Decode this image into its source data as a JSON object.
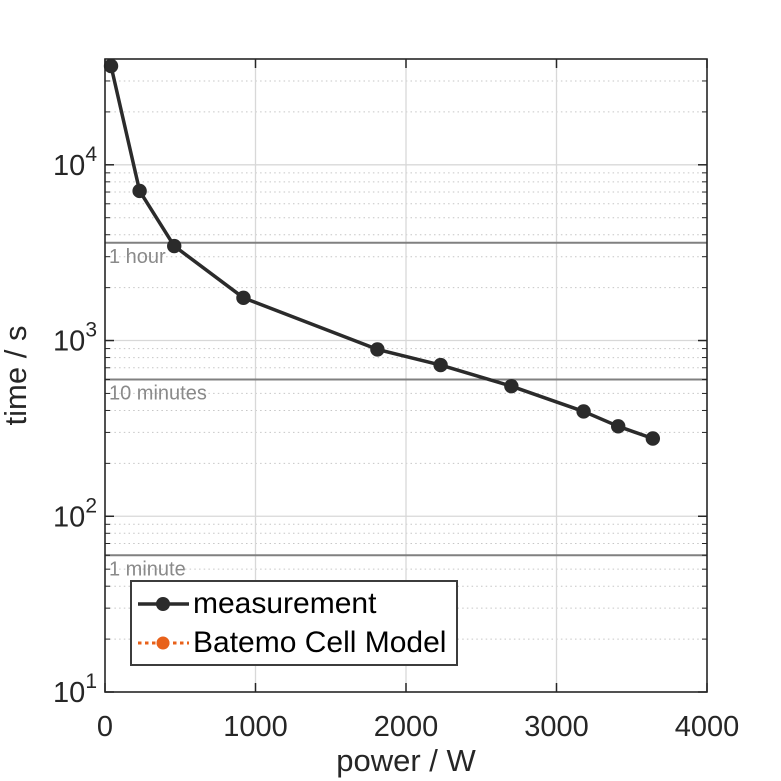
{
  "figure": {
    "background": "#ffffff"
  },
  "chart_data": {
    "type": "line",
    "title": "",
    "xlabel": "power / W",
    "ylabel": "time / s",
    "x_axis": {
      "min": 0,
      "max": 4000,
      "scale": "linear",
      "ticks": [
        0,
        1000,
        2000,
        3000,
        4000
      ]
    },
    "y_axis": {
      "min": 10,
      "max": 40000,
      "scale": "log",
      "decade_ticks": [
        1,
        2,
        3,
        4
      ],
      "tick_labels": [
        "10^1",
        "10^2",
        "10^3",
        "10^4"
      ]
    },
    "grid": {
      "x_major": true,
      "y_major": true,
      "y_minor": "dotted"
    },
    "legend_position": "southwest",
    "series": [
      {
        "name": "measurement",
        "color": "#2b2b2b",
        "line_style": "solid",
        "marker": "filled-circle",
        "visible_in_plot": true,
        "points": [
          [
            40,
            36500
          ],
          [
            230,
            7100
          ],
          [
            460,
            3450
          ],
          [
            920,
            1750
          ],
          [
            1810,
            890
          ],
          [
            2230,
            725
          ],
          [
            2700,
            550
          ],
          [
            3180,
            395
          ],
          [
            3410,
            325
          ],
          [
            3640,
            277
          ]
        ]
      },
      {
        "name": "Batemo Cell Model",
        "color": "#e8611a",
        "line_style": "dotted",
        "marker": "filled-circle",
        "visible_in_plot": false,
        "points": []
      }
    ],
    "reference_lines": [
      {
        "label": "1 hour",
        "time_s": 3600
      },
      {
        "label": "10 minutes",
        "time_s": 600
      },
      {
        "label": "1 minute",
        "time_s": 60
      }
    ]
  },
  "style": {
    "axis_color": "#262626",
    "tick_label_color": "#262626",
    "grid_major_color": "#d8d8d8",
    "grid_minor_color": "#c6c6c6",
    "reference_line_color": "#808080",
    "reference_label_color": "#8a8a8a",
    "legend_border_color": "#3c3c3c",
    "legend_background": "#ffffff"
  }
}
